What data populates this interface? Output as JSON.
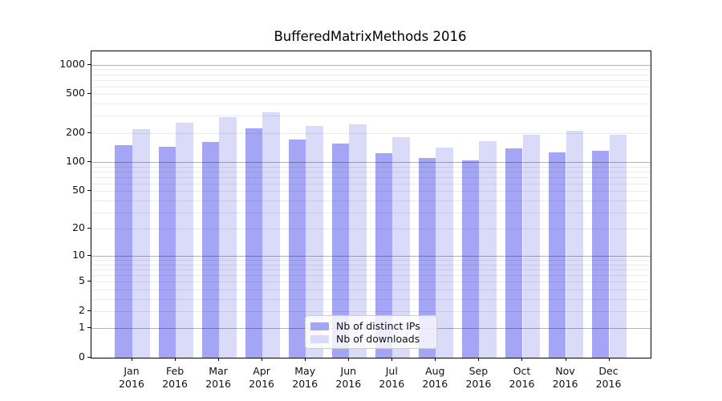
{
  "title": "BufferedMatrixMethods 2016",
  "chart_data": {
    "type": "bar",
    "title": "BufferedMatrixMethods 2016",
    "categories": [
      "Jan",
      "Feb",
      "Mar",
      "Apr",
      "May",
      "Jun",
      "Jul",
      "Aug",
      "Sep",
      "Oct",
      "Nov",
      "Dec"
    ],
    "year": "2016",
    "x_tick_labels": [
      "Jan\n2016",
      "Feb\n2016",
      "Mar\n2016",
      "Apr\n2016",
      "May\n2016",
      "Jun\n2016",
      "Jul\n2016",
      "Aug\n2016",
      "Sep\n2016",
      "Oct\n2016",
      "Nov\n2016",
      "Dec\n2016"
    ],
    "series": [
      {
        "name": "Nb of distinct IPs",
        "color": "#a5a5f5",
        "values": [
          151,
          145,
          161,
          221,
          172,
          155,
          124,
          110,
          105,
          138,
          126,
          132
        ]
      },
      {
        "name": "Nb of downloads",
        "color": "#dadaf9",
        "values": [
          219,
          256,
          291,
          326,
          237,
          245,
          181,
          140,
          165,
          190,
          210,
          190
        ]
      }
    ],
    "y_scale": "log10(1+y)",
    "ylim": [
      0,
      1377
    ],
    "y_tick_labels": [
      "0",
      "1",
      "2",
      "5",
      "10",
      "20",
      "50",
      "100",
      "200",
      "500",
      "1000"
    ],
    "y_tick_values": [
      0,
      1,
      2,
      5,
      10,
      20,
      50,
      100,
      200,
      500,
      1000
    ],
    "y_major_gridlines": [
      1,
      10,
      100,
      1000
    ],
    "y_minor_gridlines": [
      2,
      3,
      4,
      5,
      6,
      7,
      8,
      9,
      20,
      30,
      40,
      50,
      60,
      70,
      80,
      90,
      200,
      300,
      400,
      500,
      600,
      700,
      800,
      900
    ],
    "grid": "on, drawn over bars",
    "legend_position": "bottom-center-left inside plot"
  }
}
